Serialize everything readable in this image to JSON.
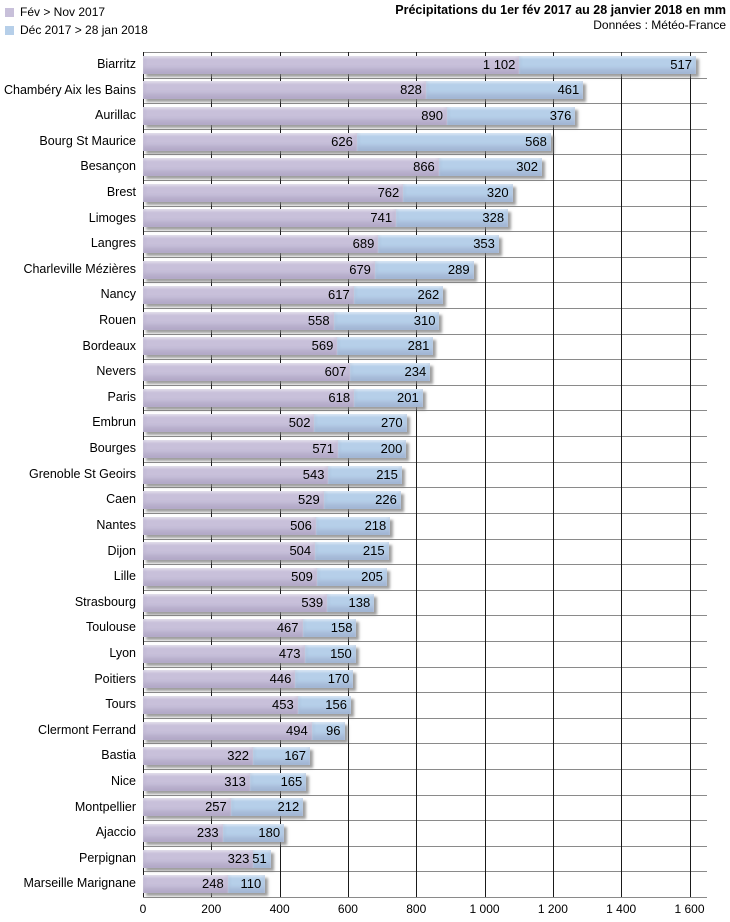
{
  "header": {
    "title": "Précipitations du 1er fév 2017 au 28 janvier 2018 en mm",
    "subtitle": "Données : Météo-France"
  },
  "legend": [
    {
      "label": "Fév > Nov 2017",
      "color": "#C8C0DA"
    },
    {
      "label": "Déc 2017 > 28 jan 2018",
      "color": "#B6CFE9"
    }
  ],
  "colors": {
    "series1_bar": "#C8C0DA",
    "series2_bar": "#B6CFE9",
    "grid_vertical": "#1a1a1a",
    "grid_horizontal": "#8a8a8a",
    "value_text": "#000000"
  },
  "chart_data": {
    "type": "bar",
    "orientation": "horizontal",
    "stacked": true,
    "title": "Précipitations du 1er fév 2017 au 28 janvier 2018 en mm",
    "subtitle": "Données : Météo-France",
    "legend_position": "top-left",
    "value_labels": "inside-end",
    "grid": "vertical-major",
    "xlim": [
      0,
      1650
    ],
    "xticks": [
      0,
      200,
      400,
      600,
      800,
      1000,
      1200,
      1400,
      1600
    ],
    "xtick_labels": [
      "0",
      "200",
      "400",
      "600",
      "800",
      "1 000",
      "1 200",
      "1 400",
      "1 600"
    ],
    "categories": [
      "Biarritz",
      "Chambéry Aix les Bains",
      "Aurillac",
      "Bourg St Maurice",
      "Besançon",
      "Brest",
      "Limoges",
      "Langres",
      "Charleville Mézières",
      "Nancy",
      "Rouen",
      "Bordeaux",
      "Nevers",
      "Paris",
      "Embrun",
      "Bourges",
      "Grenoble St Geoirs",
      "Caen",
      "Nantes",
      "Dijon",
      "Lille",
      "Strasbourg",
      "Toulouse",
      "Lyon",
      "Poitiers",
      "Tours",
      "Clermont Ferrand",
      "Bastia",
      "Nice",
      "Montpellier",
      "Ajaccio",
      "Perpignan",
      "Marseille Marignane"
    ],
    "series": [
      {
        "name": "Fév > Nov 2017",
        "values": [
          1102,
          828,
          890,
          626,
          866,
          762,
          741,
          689,
          679,
          617,
          558,
          569,
          607,
          618,
          502,
          571,
          543,
          529,
          506,
          504,
          509,
          539,
          467,
          473,
          446,
          453,
          494,
          322,
          313,
          257,
          233,
          323,
          248
        ]
      },
      {
        "name": "Déc 2017 > 28 jan 2018",
        "values": [
          517,
          461,
          376,
          568,
          302,
          320,
          328,
          353,
          289,
          262,
          310,
          281,
          234,
          201,
          270,
          200,
          215,
          226,
          218,
          215,
          205,
          138,
          158,
          150,
          170,
          156,
          96,
          167,
          165,
          212,
          180,
          51,
          110
        ]
      }
    ]
  }
}
